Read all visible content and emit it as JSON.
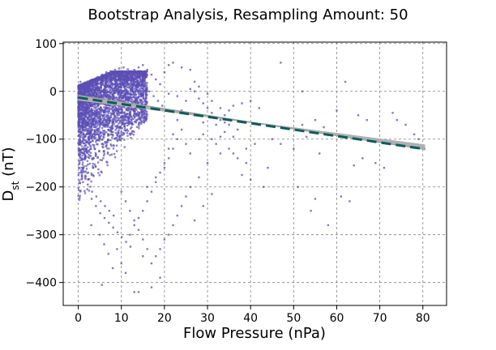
{
  "chart_data": {
    "type": "scatter",
    "title": "Bootstrap Analysis, Resampling Amount: 50",
    "xlabel": "Flow Pressure (nPa)",
    "ylabel": "D",
    "ylabel_sub": "st",
    "ylabel_units": " (nT)",
    "xlim": [
      -3.5,
      85.5
    ],
    "ylim": [
      -448,
      103
    ],
    "xticks": [
      0,
      10,
      20,
      30,
      40,
      50,
      60,
      70,
      80
    ],
    "yticks": [
      100,
      0,
      -100,
      -200,
      -300,
      -400
    ],
    "grid": true,
    "colors": {
      "points": "#5b4fb5",
      "bootstrap_band": "#8f8f8f",
      "bootstrap_lines": "#d6d6d6",
      "fit_line": "#0d5c5c"
    },
    "series": [
      {
        "kind": "scatter",
        "points": [
          [
            0.5,
            20
          ],
          [
            1,
            10
          ],
          [
            1.5,
            -5
          ],
          [
            2,
            -20
          ],
          [
            2.5,
            -35
          ],
          [
            3,
            -50
          ],
          [
            3.5,
            -60
          ],
          [
            4,
            -75
          ],
          [
            4.5,
            -90
          ],
          [
            5,
            -100
          ],
          [
            5.5,
            -110
          ],
          [
            6,
            -125
          ],
          [
            0.8,
            -140
          ],
          [
            1.2,
            -160
          ],
          [
            1.6,
            -180
          ],
          [
            2.2,
            -195
          ],
          [
            3.2,
            -210
          ],
          [
            4.2,
            -220
          ],
          [
            5.2,
            -230
          ],
          [
            6.2,
            -240
          ],
          [
            7.2,
            -250
          ],
          [
            8.2,
            -260
          ],
          [
            1.5,
            5
          ],
          [
            2.5,
            15
          ],
          [
            3.5,
            25
          ],
          [
            4.5,
            30
          ],
          [
            5.5,
            35
          ],
          [
            6.5,
            40
          ],
          [
            7.5,
            42
          ],
          [
            8.5,
            45
          ],
          [
            9.5,
            48
          ],
          [
            10.5,
            50
          ],
          [
            11.5,
            46
          ],
          [
            12.5,
            40
          ],
          [
            13.5,
            30
          ],
          [
            14.5,
            20
          ],
          [
            15.5,
            10
          ],
          [
            16.5,
            0
          ],
          [
            17.5,
            -10
          ],
          [
            18.5,
            -20
          ],
          [
            19.5,
            -30
          ],
          [
            3,
            -280
          ],
          [
            5,
            -300
          ],
          [
            6,
            -320
          ],
          [
            7,
            -340
          ],
          [
            5.5,
            -405
          ],
          [
            8,
            -370
          ],
          [
            10,
            -360
          ],
          [
            11,
            -380
          ],
          [
            13,
            -420
          ],
          [
            14,
            -420
          ],
          [
            15,
            -345
          ],
          [
            17,
            -410
          ],
          [
            19,
            -390
          ],
          [
            12,
            -300
          ],
          [
            9,
            -330
          ],
          [
            16,
            -200
          ],
          [
            18,
            -180
          ],
          [
            20,
            -150
          ],
          [
            21,
            -120
          ],
          [
            22,
            -90
          ],
          [
            23,
            -60
          ],
          [
            24,
            -40
          ],
          [
            20,
            40
          ],
          [
            21,
            55
          ],
          [
            22,
            60
          ],
          [
            24,
            50
          ],
          [
            26,
            45
          ],
          [
            27,
            20
          ],
          [
            28,
            10
          ],
          [
            30,
            -5
          ],
          [
            31,
            -20
          ],
          [
            33,
            -35
          ],
          [
            34,
            -50
          ],
          [
            35,
            -40
          ],
          [
            36,
            -30
          ],
          [
            38,
            -25
          ],
          [
            40,
            -20
          ],
          [
            42,
            -35
          ],
          [
            37,
            -80
          ],
          [
            33,
            -130
          ],
          [
            30,
            -150
          ],
          [
            28,
            -180
          ],
          [
            26,
            -200
          ],
          [
            25,
            -220
          ],
          [
            24,
            -240
          ],
          [
            23,
            -260
          ],
          [
            22,
            -280
          ],
          [
            21,
            -300
          ],
          [
            20,
            -310
          ],
          [
            19,
            -330
          ],
          [
            18,
            -345
          ],
          [
            17,
            -360
          ],
          [
            16,
            -330
          ],
          [
            15,
            -310
          ],
          [
            14,
            -290
          ],
          [
            13,
            -270
          ],
          [
            12,
            -250
          ],
          [
            11,
            -230
          ],
          [
            10,
            -210
          ],
          [
            27,
            -270
          ],
          [
            29,
            -240
          ],
          [
            31,
            -215
          ],
          [
            38,
            -175
          ],
          [
            40,
            -185
          ],
          [
            43,
            -200
          ],
          [
            44,
            -160
          ],
          [
            47,
            -110
          ],
          [
            50,
            -120
          ],
          [
            52,
            -70
          ],
          [
            55,
            -60
          ],
          [
            57,
            -75
          ],
          [
            60,
            -40
          ],
          [
            62,
            20
          ],
          [
            65,
            -50
          ],
          [
            67,
            -60
          ],
          [
            47,
            60
          ],
          [
            52,
            0
          ],
          [
            54,
            -250
          ],
          [
            51,
            -200
          ],
          [
            55,
            -225
          ],
          [
            58,
            -280
          ],
          [
            61,
            -220
          ],
          [
            63,
            -230
          ],
          [
            64,
            -155
          ],
          [
            71,
            -160
          ],
          [
            73,
            -45
          ],
          [
            74,
            -60
          ],
          [
            76,
            -70
          ],
          [
            78,
            -90
          ],
          [
            79,
            -100
          ],
          [
            69,
            -150
          ],
          [
            66,
            -140
          ],
          [
            56,
            -130
          ],
          [
            53,
            -95
          ],
          [
            45,
            -100
          ],
          [
            41,
            -110
          ],
          [
            39,
            -120
          ],
          [
            36,
            -95
          ],
          [
            34,
            -85
          ],
          [
            32,
            -70
          ],
          [
            29,
            -65
          ],
          [
            27,
            -50
          ],
          [
            25,
            -20
          ],
          [
            23,
            -10
          ],
          [
            21,
            -5
          ],
          [
            19,
            15
          ],
          [
            18,
            25
          ],
          [
            17,
            35
          ],
          [
            16,
            45
          ],
          [
            15,
            55
          ],
          [
            14,
            50
          ],
          [
            13,
            45
          ],
          [
            12,
            35
          ],
          [
            11,
            25
          ],
          [
            10,
            15
          ],
          [
            9,
            5
          ],
          [
            8,
            -5
          ],
          [
            7,
            -15
          ],
          [
            6,
            -25
          ],
          [
            4,
            -45
          ],
          [
            3,
            -55
          ],
          [
            2,
            -65
          ],
          [
            1,
            -80
          ],
          [
            0.5,
            -95
          ],
          [
            0.2,
            -120
          ],
          [
            0.3,
            -150
          ],
          [
            0.6,
            -170
          ],
          [
            1.1,
            -190
          ],
          [
            2.1,
            -205
          ],
          [
            3.1,
            -225
          ],
          [
            4.1,
            -240
          ],
          [
            5.1,
            -255
          ],
          [
            6.1,
            -265
          ],
          [
            7.1,
            -275
          ],
          [
            8.1,
            -285
          ],
          [
            9.1,
            -295
          ],
          [
            10.1,
            -305
          ],
          [
            11.1,
            -315
          ],
          [
            12.1,
            -325
          ],
          [
            25,
            -110
          ],
          [
            26,
            -130
          ],
          [
            28,
            -100
          ],
          [
            29,
            -90
          ],
          [
            31,
            -100
          ],
          [
            32,
            -110
          ],
          [
            33,
            -95
          ],
          [
            35,
            -120
          ],
          [
            36,
            -130
          ],
          [
            37,
            -140
          ],
          [
            39,
            -150
          ],
          [
            26,
            5
          ],
          [
            27,
            0
          ],
          [
            28,
            -15
          ],
          [
            29,
            -25
          ],
          [
            30,
            -35
          ],
          [
            31,
            -45
          ],
          [
            32,
            -55
          ],
          [
            33,
            -60
          ],
          [
            34,
            -65
          ],
          [
            35,
            -70
          ],
          [
            24,
            -80
          ],
          [
            23,
            -100
          ],
          [
            22,
            -120
          ],
          [
            21,
            -140
          ],
          [
            20,
            -160
          ],
          [
            19,
            -170
          ],
          [
            18,
            -190
          ],
          [
            17,
            -210
          ],
          [
            16,
            -230
          ],
          [
            15,
            -250
          ],
          [
            14,
            -265
          ],
          [
            13,
            -280
          ]
        ]
      },
      {
        "kind": "bootstrap",
        "count": 50,
        "x_range": [
          0,
          80.5
        ],
        "start_y": [
          -18,
          -8
        ],
        "end_y": [
          -128,
          -112
        ]
      },
      {
        "kind": "fit",
        "x_range": [
          0,
          80.5
        ],
        "y": [
          -13,
          -121
        ]
      }
    ]
  }
}
